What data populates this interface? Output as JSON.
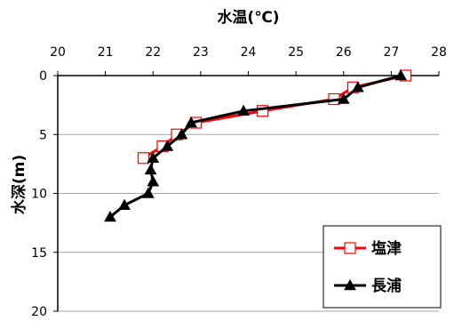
{
  "chart_data": {
    "type": "line",
    "title": "",
    "xlabel": "水温(℃)",
    "ylabel": "水深(m)",
    "x_axis_position": "top",
    "y_axis_inverted": true,
    "xlim": [
      20,
      28
    ],
    "ylim": [
      0,
      20
    ],
    "x_ticks": [
      "20",
      "21",
      "22",
      "23",
      "24",
      "25",
      "26",
      "27",
      "28"
    ],
    "y_ticks": [
      "0",
      "5",
      "10",
      "15",
      "20"
    ],
    "grid": "horizontal",
    "legend_position": "bottom-right",
    "series": [
      {
        "name": "塩津",
        "color": "#ff0000",
        "marker": "open-square",
        "points": [
          {
            "temp": 27.3,
            "depth": 0
          },
          {
            "temp": 26.2,
            "depth": 1
          },
          {
            "temp": 25.8,
            "depth": 2
          },
          {
            "temp": 24.3,
            "depth": 3
          },
          {
            "temp": 22.9,
            "depth": 4
          },
          {
            "temp": 22.5,
            "depth": 5
          },
          {
            "temp": 22.2,
            "depth": 6
          },
          {
            "temp": 21.8,
            "depth": 7
          }
        ]
      },
      {
        "name": "長浦",
        "color": "#000000",
        "marker": "filled-triangle",
        "points": [
          {
            "temp": 27.2,
            "depth": 0
          },
          {
            "temp": 26.3,
            "depth": 1
          },
          {
            "temp": 26.0,
            "depth": 2
          },
          {
            "temp": 23.9,
            "depth": 3
          },
          {
            "temp": 22.8,
            "depth": 4
          },
          {
            "temp": 22.6,
            "depth": 5
          },
          {
            "temp": 22.3,
            "depth": 6
          },
          {
            "temp": 22.0,
            "depth": 7
          },
          {
            "temp": 21.95,
            "depth": 8
          },
          {
            "temp": 22.0,
            "depth": 9
          },
          {
            "temp": 21.9,
            "depth": 10
          },
          {
            "temp": 21.4,
            "depth": 11
          },
          {
            "temp": 21.1,
            "depth": 12
          }
        ]
      }
    ]
  }
}
